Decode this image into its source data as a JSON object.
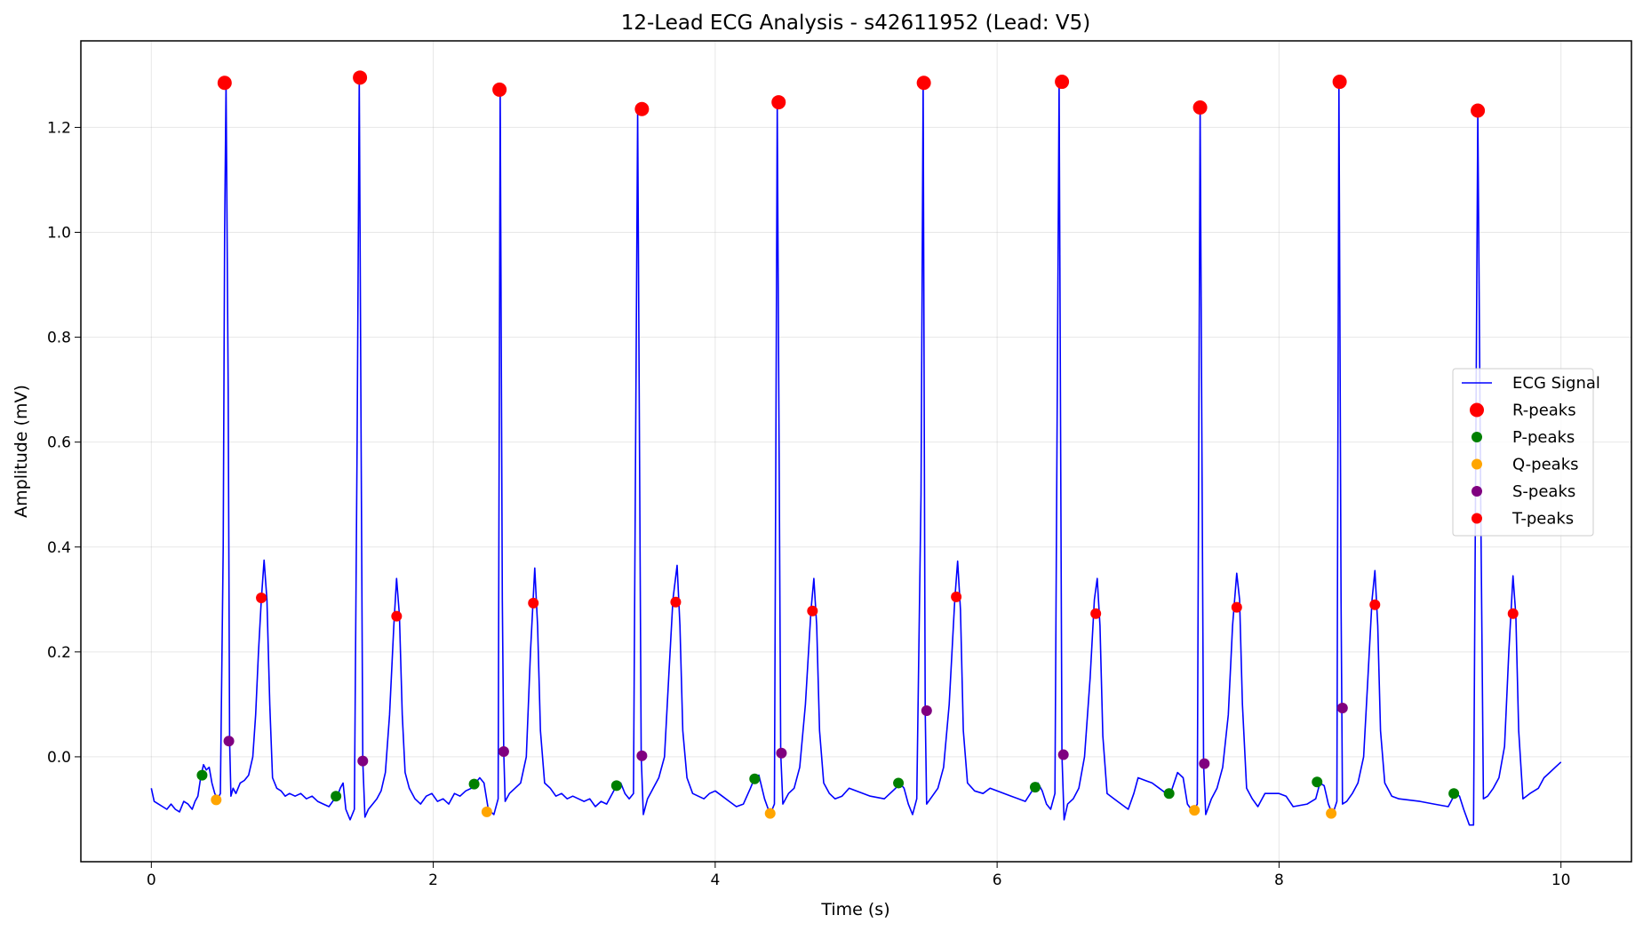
{
  "chart_data": {
    "type": "line",
    "title": "12-Lead ECG Analysis - s42611952 (Lead: V5)",
    "xlabel": "Time (s)",
    "ylabel": "Amplitude (mV)",
    "xlim": [
      -0.5,
      10.5
    ],
    "ylim": [
      -0.2,
      1.365
    ],
    "xticks": [
      0,
      2,
      4,
      6,
      8,
      10
    ],
    "yticks": [
      0.0,
      0.2,
      0.4,
      0.6,
      0.8,
      1.0,
      1.2
    ],
    "ytick_labels": [
      "0.0",
      "0.2",
      "0.4",
      "0.6",
      "0.8",
      "1.0",
      "1.2"
    ],
    "grid": true,
    "legend_placement": "center-right",
    "colors": {
      "signal": "#0000ff",
      "r_peaks": "#ff0000",
      "p_peaks": "#008000",
      "q_peaks": "#ffa500",
      "s_peaks": "#800080",
      "t_peaks": "#ff0000"
    },
    "signal": {
      "name": "ECG Signal",
      "points": [
        [
          0.0,
          -0.06
        ],
        [
          0.02,
          -0.085
        ],
        [
          0.05,
          -0.09
        ],
        [
          0.08,
          -0.095
        ],
        [
          0.11,
          -0.1
        ],
        [
          0.14,
          -0.09
        ],
        [
          0.17,
          -0.1
        ],
        [
          0.2,
          -0.105
        ],
        [
          0.23,
          -0.085
        ],
        [
          0.26,
          -0.09
        ],
        [
          0.29,
          -0.1
        ],
        [
          0.31,
          -0.085
        ],
        [
          0.33,
          -0.075
        ],
        [
          0.35,
          -0.04
        ],
        [
          0.37,
          -0.015
        ],
        [
          0.39,
          -0.025
        ],
        [
          0.41,
          -0.02
        ],
        [
          0.43,
          -0.05
        ],
        [
          0.45,
          -0.07
        ],
        [
          0.47,
          -0.08
        ],
        [
          0.49,
          -0.07
        ],
        [
          0.51,
          0.4
        ],
        [
          0.52,
          1.0
        ],
        [
          0.53,
          1.285
        ],
        [
          0.545,
          0.7
        ],
        [
          0.555,
          0.03
        ],
        [
          0.565,
          -0.075
        ],
        [
          0.58,
          -0.06
        ],
        [
          0.6,
          -0.07
        ],
        [
          0.63,
          -0.05
        ],
        [
          0.66,
          -0.045
        ],
        [
          0.69,
          -0.035
        ],
        [
          0.72,
          0.0
        ],
        [
          0.74,
          0.08
        ],
        [
          0.76,
          0.2
        ],
        [
          0.78,
          0.3
        ],
        [
          0.8,
          0.375
        ],
        [
          0.82,
          0.3
        ],
        [
          0.84,
          0.1
        ],
        [
          0.86,
          -0.04
        ],
        [
          0.89,
          -0.06
        ],
        [
          0.92,
          -0.065
        ],
        [
          0.95,
          -0.075
        ],
        [
          0.98,
          -0.07
        ],
        [
          1.02,
          -0.075
        ],
        [
          1.06,
          -0.07
        ],
        [
          1.1,
          -0.08
        ],
        [
          1.14,
          -0.075
        ],
        [
          1.18,
          -0.085
        ],
        [
          1.22,
          -0.09
        ],
        [
          1.26,
          -0.095
        ],
        [
          1.3,
          -0.08
        ],
        [
          1.32,
          -0.075
        ],
        [
          1.34,
          -0.06
        ],
        [
          1.36,
          -0.05
        ],
        [
          1.38,
          -0.1
        ],
        [
          1.41,
          -0.12
        ],
        [
          1.44,
          -0.1
        ],
        [
          1.46,
          0.6
        ],
        [
          1.475,
          1.295
        ],
        [
          1.49,
          0.5
        ],
        [
          1.5,
          -0.01
        ],
        [
          1.515,
          -0.115
        ],
        [
          1.54,
          -0.1
        ],
        [
          1.57,
          -0.09
        ],
        [
          1.6,
          -0.08
        ],
        [
          1.63,
          -0.065
        ],
        [
          1.66,
          -0.03
        ],
        [
          1.69,
          0.08
        ],
        [
          1.72,
          0.25
        ],
        [
          1.74,
          0.34
        ],
        [
          1.76,
          0.27
        ],
        [
          1.78,
          0.08
        ],
        [
          1.8,
          -0.03
        ],
        [
          1.83,
          -0.06
        ],
        [
          1.87,
          -0.08
        ],
        [
          1.91,
          -0.09
        ],
        [
          1.95,
          -0.075
        ],
        [
          1.99,
          -0.07
        ],
        [
          2.03,
          -0.085
        ],
        [
          2.07,
          -0.08
        ],
        [
          2.11,
          -0.09
        ],
        [
          2.15,
          -0.07
        ],
        [
          2.19,
          -0.075
        ],
        [
          2.23,
          -0.065
        ],
        [
          2.27,
          -0.06
        ],
        [
          2.3,
          -0.05
        ],
        [
          2.33,
          -0.04
        ],
        [
          2.36,
          -0.05
        ],
        [
          2.39,
          -0.1
        ],
        [
          2.43,
          -0.11
        ],
        [
          2.46,
          -0.08
        ],
        [
          2.475,
          1.27
        ],
        [
          2.49,
          0.3
        ],
        [
          2.5,
          0.01
        ],
        [
          2.51,
          -0.085
        ],
        [
          2.54,
          -0.07
        ],
        [
          2.58,
          -0.06
        ],
        [
          2.62,
          -0.05
        ],
        [
          2.66,
          0.0
        ],
        [
          2.69,
          0.2
        ],
        [
          2.72,
          0.36
        ],
        [
          2.74,
          0.25
        ],
        [
          2.76,
          0.05
        ],
        [
          2.79,
          -0.05
        ],
        [
          2.83,
          -0.06
        ],
        [
          2.87,
          -0.075
        ],
        [
          2.91,
          -0.07
        ],
        [
          2.95,
          -0.08
        ],
        [
          2.99,
          -0.075
        ],
        [
          3.03,
          -0.08
        ],
        [
          3.07,
          -0.085
        ],
        [
          3.11,
          -0.08
        ],
        [
          3.15,
          -0.095
        ],
        [
          3.19,
          -0.085
        ],
        [
          3.23,
          -0.09
        ],
        [
          3.27,
          -0.07
        ],
        [
          3.3,
          -0.055
        ],
        [
          3.33,
          -0.05
        ],
        [
          3.36,
          -0.07
        ],
        [
          3.39,
          -0.08
        ],
        [
          3.42,
          -0.07
        ],
        [
          3.45,
          1.23
        ],
        [
          3.475,
          0.0
        ],
        [
          3.49,
          -0.11
        ],
        [
          3.52,
          -0.08
        ],
        [
          3.56,
          -0.06
        ],
        [
          3.6,
          -0.04
        ],
        [
          3.64,
          0.0
        ],
        [
          3.67,
          0.15
        ],
        [
          3.7,
          0.3
        ],
        [
          3.73,
          0.365
        ],
        [
          3.75,
          0.25
        ],
        [
          3.77,
          0.05
        ],
        [
          3.8,
          -0.04
        ],
        [
          3.84,
          -0.07
        ],
        [
          3.88,
          -0.075
        ],
        [
          3.92,
          -0.08
        ],
        [
          3.96,
          -0.07
        ],
        [
          4.0,
          -0.065
        ],
        [
          4.05,
          -0.075
        ],
        [
          4.1,
          -0.085
        ],
        [
          4.15,
          -0.095
        ],
        [
          4.2,
          -0.09
        ],
        [
          4.25,
          -0.06
        ],
        [
          4.28,
          -0.04
        ],
        [
          4.31,
          -0.035
        ],
        [
          4.35,
          -0.08
        ],
        [
          4.39,
          -0.11
        ],
        [
          4.42,
          -0.09
        ],
        [
          4.44,
          1.245
        ],
        [
          4.465,
          0.007
        ],
        [
          4.48,
          -0.09
        ],
        [
          4.52,
          -0.07
        ],
        [
          4.56,
          -0.06
        ],
        [
          4.6,
          -0.02
        ],
        [
          4.64,
          0.1
        ],
        [
          4.68,
          0.28
        ],
        [
          4.7,
          0.34
        ],
        [
          4.72,
          0.25
        ],
        [
          4.74,
          0.05
        ],
        [
          4.77,
          -0.05
        ],
        [
          4.81,
          -0.07
        ],
        [
          4.85,
          -0.08
        ],
        [
          4.9,
          -0.075
        ],
        [
          4.95,
          -0.06
        ],
        [
          5.0,
          -0.065
        ],
        [
          5.1,
          -0.075
        ],
        [
          5.2,
          -0.08
        ],
        [
          5.28,
          -0.06
        ],
        [
          5.31,
          -0.05
        ],
        [
          5.34,
          -0.06
        ],
        [
          5.37,
          -0.09
        ],
        [
          5.4,
          -0.11
        ],
        [
          5.43,
          -0.08
        ],
        [
          5.46,
          0.5
        ],
        [
          5.475,
          1.285
        ],
        [
          5.485,
          0.5
        ],
        [
          5.49,
          0.09
        ],
        [
          5.5,
          -0.09
        ],
        [
          5.54,
          -0.075
        ],
        [
          5.58,
          -0.06
        ],
        [
          5.62,
          -0.02
        ],
        [
          5.66,
          0.1
        ],
        [
          5.7,
          0.3
        ],
        [
          5.72,
          0.373
        ],
        [
          5.74,
          0.28
        ],
        [
          5.76,
          0.05
        ],
        [
          5.79,
          -0.05
        ],
        [
          5.84,
          -0.065
        ],
        [
          5.9,
          -0.07
        ],
        [
          5.95,
          -0.06
        ],
        [
          6.0,
          -0.065
        ],
        [
          6.1,
          -0.075
        ],
        [
          6.2,
          -0.085
        ],
        [
          6.26,
          -0.06
        ],
        [
          6.29,
          -0.05
        ],
        [
          6.32,
          -0.065
        ],
        [
          6.35,
          -0.09
        ],
        [
          6.38,
          -0.1
        ],
        [
          6.41,
          -0.07
        ],
        [
          6.44,
          1.285
        ],
        [
          6.46,
          0.003
        ],
        [
          6.475,
          -0.12
        ],
        [
          6.5,
          -0.09
        ],
        [
          6.54,
          -0.08
        ],
        [
          6.58,
          -0.06
        ],
        [
          6.62,
          0.0
        ],
        [
          6.66,
          0.15
        ],
        [
          6.69,
          0.3
        ],
        [
          6.71,
          0.34
        ],
        [
          6.73,
          0.25
        ],
        [
          6.75,
          0.04
        ],
        [
          6.78,
          -0.07
        ],
        [
          6.83,
          -0.08
        ],
        [
          6.88,
          -0.09
        ],
        [
          6.93,
          -0.1
        ],
        [
          6.97,
          -0.07
        ],
        [
          7.0,
          -0.04
        ],
        [
          7.05,
          -0.045
        ],
        [
          7.1,
          -0.05
        ],
        [
          7.15,
          -0.06
        ],
        [
          7.2,
          -0.07
        ],
        [
          7.23,
          -0.07
        ],
        [
          7.28,
          -0.03
        ],
        [
          7.32,
          -0.04
        ],
        [
          7.35,
          -0.09
        ],
        [
          7.39,
          -0.105
        ],
        [
          7.42,
          -0.09
        ],
        [
          7.44,
          1.237
        ],
        [
          7.465,
          -0.015
        ],
        [
          7.48,
          -0.11
        ],
        [
          7.52,
          -0.08
        ],
        [
          7.56,
          -0.06
        ],
        [
          7.6,
          -0.02
        ],
        [
          7.64,
          0.08
        ],
        [
          7.67,
          0.25
        ],
        [
          7.7,
          0.35
        ],
        [
          7.72,
          0.3
        ],
        [
          7.74,
          0.1
        ],
        [
          7.77,
          -0.06
        ],
        [
          7.81,
          -0.08
        ],
        [
          7.85,
          -0.095
        ],
        [
          7.9,
          -0.07
        ],
        [
          8.0,
          -0.07
        ],
        [
          8.05,
          -0.075
        ],
        [
          8.1,
          -0.095
        ],
        [
          8.2,
          -0.09
        ],
        [
          8.26,
          -0.08
        ],
        [
          8.29,
          -0.05
        ],
        [
          8.32,
          -0.055
        ],
        [
          8.35,
          -0.09
        ],
        [
          8.38,
          -0.11
        ],
        [
          8.41,
          -0.085
        ],
        [
          8.425,
          1.285
        ],
        [
          8.44,
          0.3
        ],
        [
          8.45,
          -0.09
        ],
        [
          8.48,
          -0.085
        ],
        [
          8.52,
          -0.07
        ],
        [
          8.56,
          -0.05
        ],
        [
          8.6,
          0.0
        ],
        [
          8.63,
          0.15
        ],
        [
          8.66,
          0.3
        ],
        [
          8.68,
          0.355
        ],
        [
          8.7,
          0.25
        ],
        [
          8.72,
          0.05
        ],
        [
          8.75,
          -0.05
        ],
        [
          8.8,
          -0.075
        ],
        [
          8.85,
          -0.08
        ],
        [
          9.0,
          -0.085
        ],
        [
          9.1,
          -0.09
        ],
        [
          9.2,
          -0.095
        ],
        [
          9.25,
          -0.07
        ],
        [
          9.28,
          -0.075
        ],
        [
          9.31,
          -0.1
        ],
        [
          9.35,
          -0.13
        ],
        [
          9.38,
          -0.13
        ],
        [
          9.41,
          1.23
        ],
        [
          9.43,
          0.5
        ],
        [
          9.45,
          -0.08
        ],
        [
          9.48,
          -0.075
        ],
        [
          9.52,
          -0.06
        ],
        [
          9.56,
          -0.04
        ],
        [
          9.6,
          0.02
        ],
        [
          9.63,
          0.2
        ],
        [
          9.66,
          0.345
        ],
        [
          9.68,
          0.27
        ],
        [
          9.7,
          0.05
        ],
        [
          9.73,
          -0.08
        ],
        [
          9.78,
          -0.07
        ],
        [
          9.84,
          -0.06
        ],
        [
          9.88,
          -0.04
        ],
        [
          9.92,
          -0.03
        ],
        [
          9.96,
          -0.02
        ],
        [
          10.0,
          -0.01
        ]
      ]
    },
    "series": [
      {
        "name": "R-peaks",
        "color": "#ff0000",
        "marker": "large",
        "points": [
          [
            0.52,
            1.285
          ],
          [
            1.48,
            1.295
          ],
          [
            2.47,
            1.272
          ],
          [
            3.48,
            1.235
          ],
          [
            4.45,
            1.248
          ],
          [
            5.48,
            1.285
          ],
          [
            6.46,
            1.287
          ],
          [
            7.44,
            1.238
          ],
          [
            8.43,
            1.287
          ],
          [
            9.41,
            1.232
          ]
        ]
      },
      {
        "name": "P-peaks",
        "color": "#008000",
        "marker": "small",
        "points": [
          [
            0.36,
            -0.035
          ],
          [
            1.31,
            -0.075
          ],
          [
            2.29,
            -0.052
          ],
          [
            3.3,
            -0.055
          ],
          [
            4.28,
            -0.042
          ],
          [
            5.3,
            -0.05
          ],
          [
            6.27,
            -0.058
          ],
          [
            7.22,
            -0.07
          ],
          [
            8.27,
            -0.048
          ],
          [
            9.24,
            -0.07
          ]
        ]
      },
      {
        "name": "Q-peaks",
        "color": "#ffa500",
        "marker": "small",
        "points": [
          [
            0.46,
            -0.082
          ],
          [
            2.38,
            -0.105
          ],
          [
            4.39,
            -0.108
          ],
          [
            7.4,
            -0.102
          ],
          [
            8.37,
            -0.108
          ]
        ]
      },
      {
        "name": "S-peaks",
        "color": "#800080",
        "marker": "small",
        "points": [
          [
            0.55,
            0.03
          ],
          [
            1.5,
            -0.008
          ],
          [
            2.5,
            0.01
          ],
          [
            3.48,
            0.002
          ],
          [
            4.47,
            0.007
          ],
          [
            5.5,
            0.088
          ],
          [
            6.47,
            0.004
          ],
          [
            7.47,
            -0.013
          ],
          [
            8.45,
            0.093
          ]
        ]
      },
      {
        "name": "T-peaks",
        "color": "#ff0000",
        "marker": "small",
        "points": [
          [
            0.78,
            0.303
          ],
          [
            1.74,
            0.268
          ],
          [
            2.71,
            0.293
          ],
          [
            3.72,
            0.295
          ],
          [
            4.69,
            0.278
          ],
          [
            5.71,
            0.305
          ],
          [
            6.7,
            0.273
          ],
          [
            7.7,
            0.285
          ],
          [
            8.68,
            0.29
          ],
          [
            9.66,
            0.273
          ]
        ]
      }
    ]
  }
}
